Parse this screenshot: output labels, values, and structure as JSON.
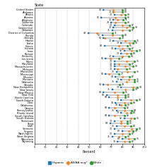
{
  "chart_data": {
    "type": "dumbbell",
    "title": "State",
    "xlabel": "Percent",
    "orientation": "horizontal",
    "categories": [
      "United States",
      "Alabama",
      "Alaska",
      "Arizona",
      "Arkansas",
      "California",
      "Colorado",
      "Connecticut",
      "Delaware",
      "District of Columbia",
      "Florida",
      "Georgia",
      "Hawaii",
      "Idaho",
      "Illinois",
      "Indiana",
      "Iowa",
      "Kansas",
      "Kentucky",
      "Louisiana",
      "Maine",
      "Maryland",
      "Massachusetts",
      "Michigan",
      "Minnesota",
      "Mississippi",
      "Missouri",
      "Montana",
      "Nebraska",
      "Nevada",
      "New Hampshire",
      "New Jersey",
      "New Mexico",
      "New York",
      "North Carolina",
      "North Dakota",
      "Ohio",
      "Oklahoma",
      "Oregon",
      "Pennsylvania",
      "Rhode Island",
      "South Carolina",
      "South Dakota",
      "Tennessee",
      "Texas",
      "Utah",
      "Vermont",
      "Virginia",
      "Washington",
      "West Virginia",
      "Wisconsin",
      "Wyoming"
    ],
    "series": [
      {
        "name": "Hispanic",
        "color": "#1f77b4",
        "marker": "square",
        "data_labels": true,
        "values": [
          63,
          72,
          73,
          61,
          72,
          70,
          73,
          72,
          71,
          49,
          62,
          63,
          72,
          79,
          64,
          74,
          82,
          79,
          72,
          65,
          73,
          73,
          73,
          73,
          75,
          65,
          74,
          79,
          75,
          63,
          79,
          71,
          63,
          66,
          68,
          79,
          74,
          78,
          68,
          75,
          79,
          68,
          82,
          73,
          69,
          75,
          73,
          80,
          73,
          71,
          80,
          76
        ]
      },
      {
        "name": "All/AA avg*",
        "color": "#ff7f0e",
        "marker": "plus",
        "data_labels": false,
        "values": [
          72,
          72,
          79,
          74,
          76,
          74,
          80,
          84,
          80,
          57,
          71,
          64,
          83,
          87,
          77,
          80,
          89,
          84,
          80,
          69,
          84,
          77,
          83,
          76,
          85,
          68,
          80,
          86,
          84,
          67,
          90,
          83,
          73,
          76,
          76,
          88,
          82,
          79,
          73,
          82,
          84,
          73,
          88,
          79,
          79,
          82,
          89,
          86,
          80,
          77,
          86,
          82
        ]
      },
      {
        "name": "White",
        "color": "#2ca02c",
        "marker": "circle",
        "data_labels": true,
        "values": [
          80,
          80,
          83,
          83,
          81,
          83,
          87,
          90,
          87,
          71,
          80,
          78,
          91,
          90,
          85,
          87,
          93,
          88,
          86,
          77,
          91,
          87,
          90,
          84,
          91,
          77,
          87,
          91,
          91,
          78,
          94,
          90,
          81,
          83,
          83,
          93,
          88,
          83,
          82,
          89,
          88,
          82,
          91,
          85,
          85,
          88,
          93,
          90,
          87,
          83,
          91,
          87
        ]
      }
    ],
    "xlim": [
      0,
      100
    ],
    "xticks": [
      0,
      10,
      20,
      30,
      40,
      50,
      60,
      70,
      80,
      90,
      100
    ],
    "grid": true,
    "legend": "lower center"
  }
}
